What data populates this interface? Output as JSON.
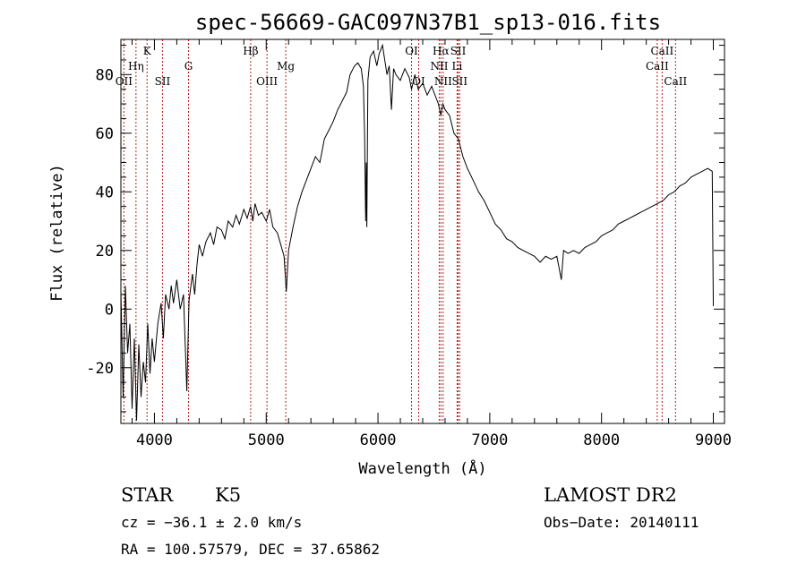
{
  "chart_data": {
    "type": "line",
    "title": "spec-56669-GAC097N37B1_sp13-016.fits",
    "xlabel": "Wavelength (Å)",
    "ylabel": "Flux (relative)",
    "xlim": [
      3700,
      9100
    ],
    "ylim": [
      -39,
      92
    ],
    "xticks": [
      4000,
      5000,
      6000,
      7000,
      8000,
      9000
    ],
    "yticks": [
      -20,
      0,
      20,
      40,
      60,
      80
    ],
    "grid": false,
    "series": [
      {
        "values": [
          [
            3700,
            6
          ],
          [
            3720,
            -30
          ],
          [
            3740,
            8
          ],
          [
            3760,
            -15
          ],
          [
            3780,
            -5
          ],
          [
            3800,
            -34
          ],
          [
            3820,
            -10
          ],
          [
            3840,
            -38
          ],
          [
            3860,
            -12
          ],
          [
            3880,
            -30
          ],
          [
            3900,
            -18
          ],
          [
            3920,
            -25
          ],
          [
            3940,
            -5
          ],
          [
            3960,
            -22
          ],
          [
            3980,
            -10
          ],
          [
            4000,
            -18
          ],
          [
            4030,
            -5
          ],
          [
            4060,
            2
          ],
          [
            4080,
            -10
          ],
          [
            4100,
            5
          ],
          [
            4130,
            0
          ],
          [
            4150,
            8
          ],
          [
            4170,
            2
          ],
          [
            4200,
            10
          ],
          [
            4230,
            0
          ],
          [
            4260,
            5
          ],
          [
            4290,
            -28
          ],
          [
            4310,
            3
          ],
          [
            4340,
            12
          ],
          [
            4360,
            5
          ],
          [
            4380,
            15
          ],
          [
            4400,
            22
          ],
          [
            4430,
            18
          ],
          [
            4460,
            23
          ],
          [
            4500,
            26
          ],
          [
            4530,
            22
          ],
          [
            4560,
            28
          ],
          [
            4600,
            27
          ],
          [
            4630,
            24
          ],
          [
            4660,
            30
          ],
          [
            4700,
            28
          ],
          [
            4730,
            32
          ],
          [
            4760,
            29
          ],
          [
            4800,
            34
          ],
          [
            4830,
            31
          ],
          [
            4860,
            35
          ],
          [
            4880,
            30
          ],
          [
            4900,
            36
          ],
          [
            4930,
            32
          ],
          [
            4960,
            33
          ],
          [
            5000,
            30
          ],
          [
            5030,
            34
          ],
          [
            5060,
            28
          ],
          [
            5100,
            26
          ],
          [
            5130,
            22
          ],
          [
            5160,
            18
          ],
          [
            5180,
            6
          ],
          [
            5200,
            20
          ],
          [
            5240,
            28
          ],
          [
            5280,
            35
          ],
          [
            5320,
            40
          ],
          [
            5360,
            44
          ],
          [
            5400,
            48
          ],
          [
            5440,
            52
          ],
          [
            5480,
            50
          ],
          [
            5520,
            58
          ],
          [
            5560,
            61
          ],
          [
            5600,
            64
          ],
          [
            5640,
            68
          ],
          [
            5680,
            71
          ],
          [
            5720,
            74
          ],
          [
            5750,
            80
          ],
          [
            5790,
            83
          ],
          [
            5820,
            84
          ],
          [
            5850,
            82
          ],
          [
            5870,
            76
          ],
          [
            5880,
            60
          ],
          [
            5890,
            30
          ],
          [
            5895,
            50
          ],
          [
            5900,
            28
          ],
          [
            5910,
            78
          ],
          [
            5930,
            86
          ],
          [
            5960,
            88
          ],
          [
            5990,
            83
          ],
          [
            6010,
            87
          ],
          [
            6040,
            90
          ],
          [
            6060,
            85
          ],
          [
            6080,
            80
          ],
          [
            6100,
            83
          ],
          [
            6120,
            68
          ],
          [
            6140,
            82
          ],
          [
            6160,
            80
          ],
          [
            6200,
            78
          ],
          [
            6240,
            82
          ],
          [
            6280,
            79
          ],
          [
            6300,
            75
          ],
          [
            6330,
            80
          ],
          [
            6360,
            75
          ],
          [
            6400,
            77
          ],
          [
            6440,
            73
          ],
          [
            6480,
            76
          ],
          [
            6520,
            72
          ],
          [
            6540,
            70
          ],
          [
            6563,
            66
          ],
          [
            6580,
            70
          ],
          [
            6600,
            68
          ],
          [
            6640,
            66
          ],
          [
            6680,
            60
          ],
          [
            6720,
            58
          ],
          [
            6760,
            52
          ],
          [
            6800,
            48
          ],
          [
            6850,
            44
          ],
          [
            6900,
            40
          ],
          [
            6950,
            37
          ],
          [
            7000,
            33
          ],
          [
            7050,
            29
          ],
          [
            7100,
            27
          ],
          [
            7150,
            24
          ],
          [
            7200,
            23
          ],
          [
            7250,
            21
          ],
          [
            7300,
            20
          ],
          [
            7350,
            19
          ],
          [
            7400,
            18
          ],
          [
            7450,
            16
          ],
          [
            7500,
            18
          ],
          [
            7550,
            17
          ],
          [
            7600,
            18
          ],
          [
            7640,
            10
          ],
          [
            7660,
            20
          ],
          [
            7700,
            19
          ],
          [
            7750,
            20
          ],
          [
            7800,
            19
          ],
          [
            7850,
            21
          ],
          [
            7900,
            22
          ],
          [
            7950,
            23
          ],
          [
            8000,
            25
          ],
          [
            8050,
            26
          ],
          [
            8100,
            27
          ],
          [
            8150,
            29
          ],
          [
            8200,
            30
          ],
          [
            8250,
            31
          ],
          [
            8300,
            32
          ],
          [
            8350,
            33
          ],
          [
            8400,
            34
          ],
          [
            8450,
            35
          ],
          [
            8500,
            36
          ],
          [
            8550,
            37
          ],
          [
            8600,
            39
          ],
          [
            8650,
            40
          ],
          [
            8700,
            42
          ],
          [
            8750,
            43
          ],
          [
            8800,
            45
          ],
          [
            8850,
            46
          ],
          [
            8900,
            47
          ],
          [
            8950,
            48
          ],
          [
            8990,
            47
          ],
          [
            9000,
            1
          ]
        ]
      }
    ],
    "lines": [
      {
        "label": "OII",
        "x": 3727,
        "row": 3
      },
      {
        "label": "Hη",
        "x": 3835,
        "row": 2
      },
      {
        "label": "K",
        "x": 3934,
        "row": 1
      },
      {
        "label": "SII",
        "x": 4072,
        "row": 3
      },
      {
        "label": "G",
        "x": 4305,
        "row": 2
      },
      {
        "label": "Hβ",
        "x": 4861,
        "row": 1
      },
      {
        "label": "OIII",
        "x": 5007,
        "row": 3
      },
      {
        "label": "Mg",
        "x": 5175,
        "row": 2
      },
      {
        "label": "OI",
        "x": 6300,
        "row": 1
      },
      {
        "label": "OI",
        "x": 6364,
        "row": 3
      },
      {
        "label": "Hα",
        "x": 6563,
        "row": 1
      },
      {
        "label": "NII",
        "x": 6548,
        "row": 2
      },
      {
        "label": "NII",
        "x": 6583,
        "row": 3
      },
      {
        "label": "SII",
        "x": 6717,
        "row": 1
      },
      {
        "label": "Li",
        "x": 6708,
        "row": 2
      },
      {
        "label": "SII",
        "x": 6731,
        "row": 3
      },
      {
        "label": "CaII",
        "x": 8498,
        "row": 2
      },
      {
        "label": "CaII",
        "x": 8542,
        "row": 1
      },
      {
        "label": "CaII",
        "x": 8662,
        "row": 3
      }
    ]
  },
  "info": {
    "class": "STAR",
    "subclass": "K5",
    "survey": "LAMOST DR2",
    "cz": "cz = −36.1 ± 2.0 km/s",
    "obsdate": "Obs−Date: 20140111",
    "radec": "RA = 100.57579, DEC =  37.65862"
  },
  "colors": {
    "spectrum": "#000000",
    "line_markers": "#b22222"
  }
}
